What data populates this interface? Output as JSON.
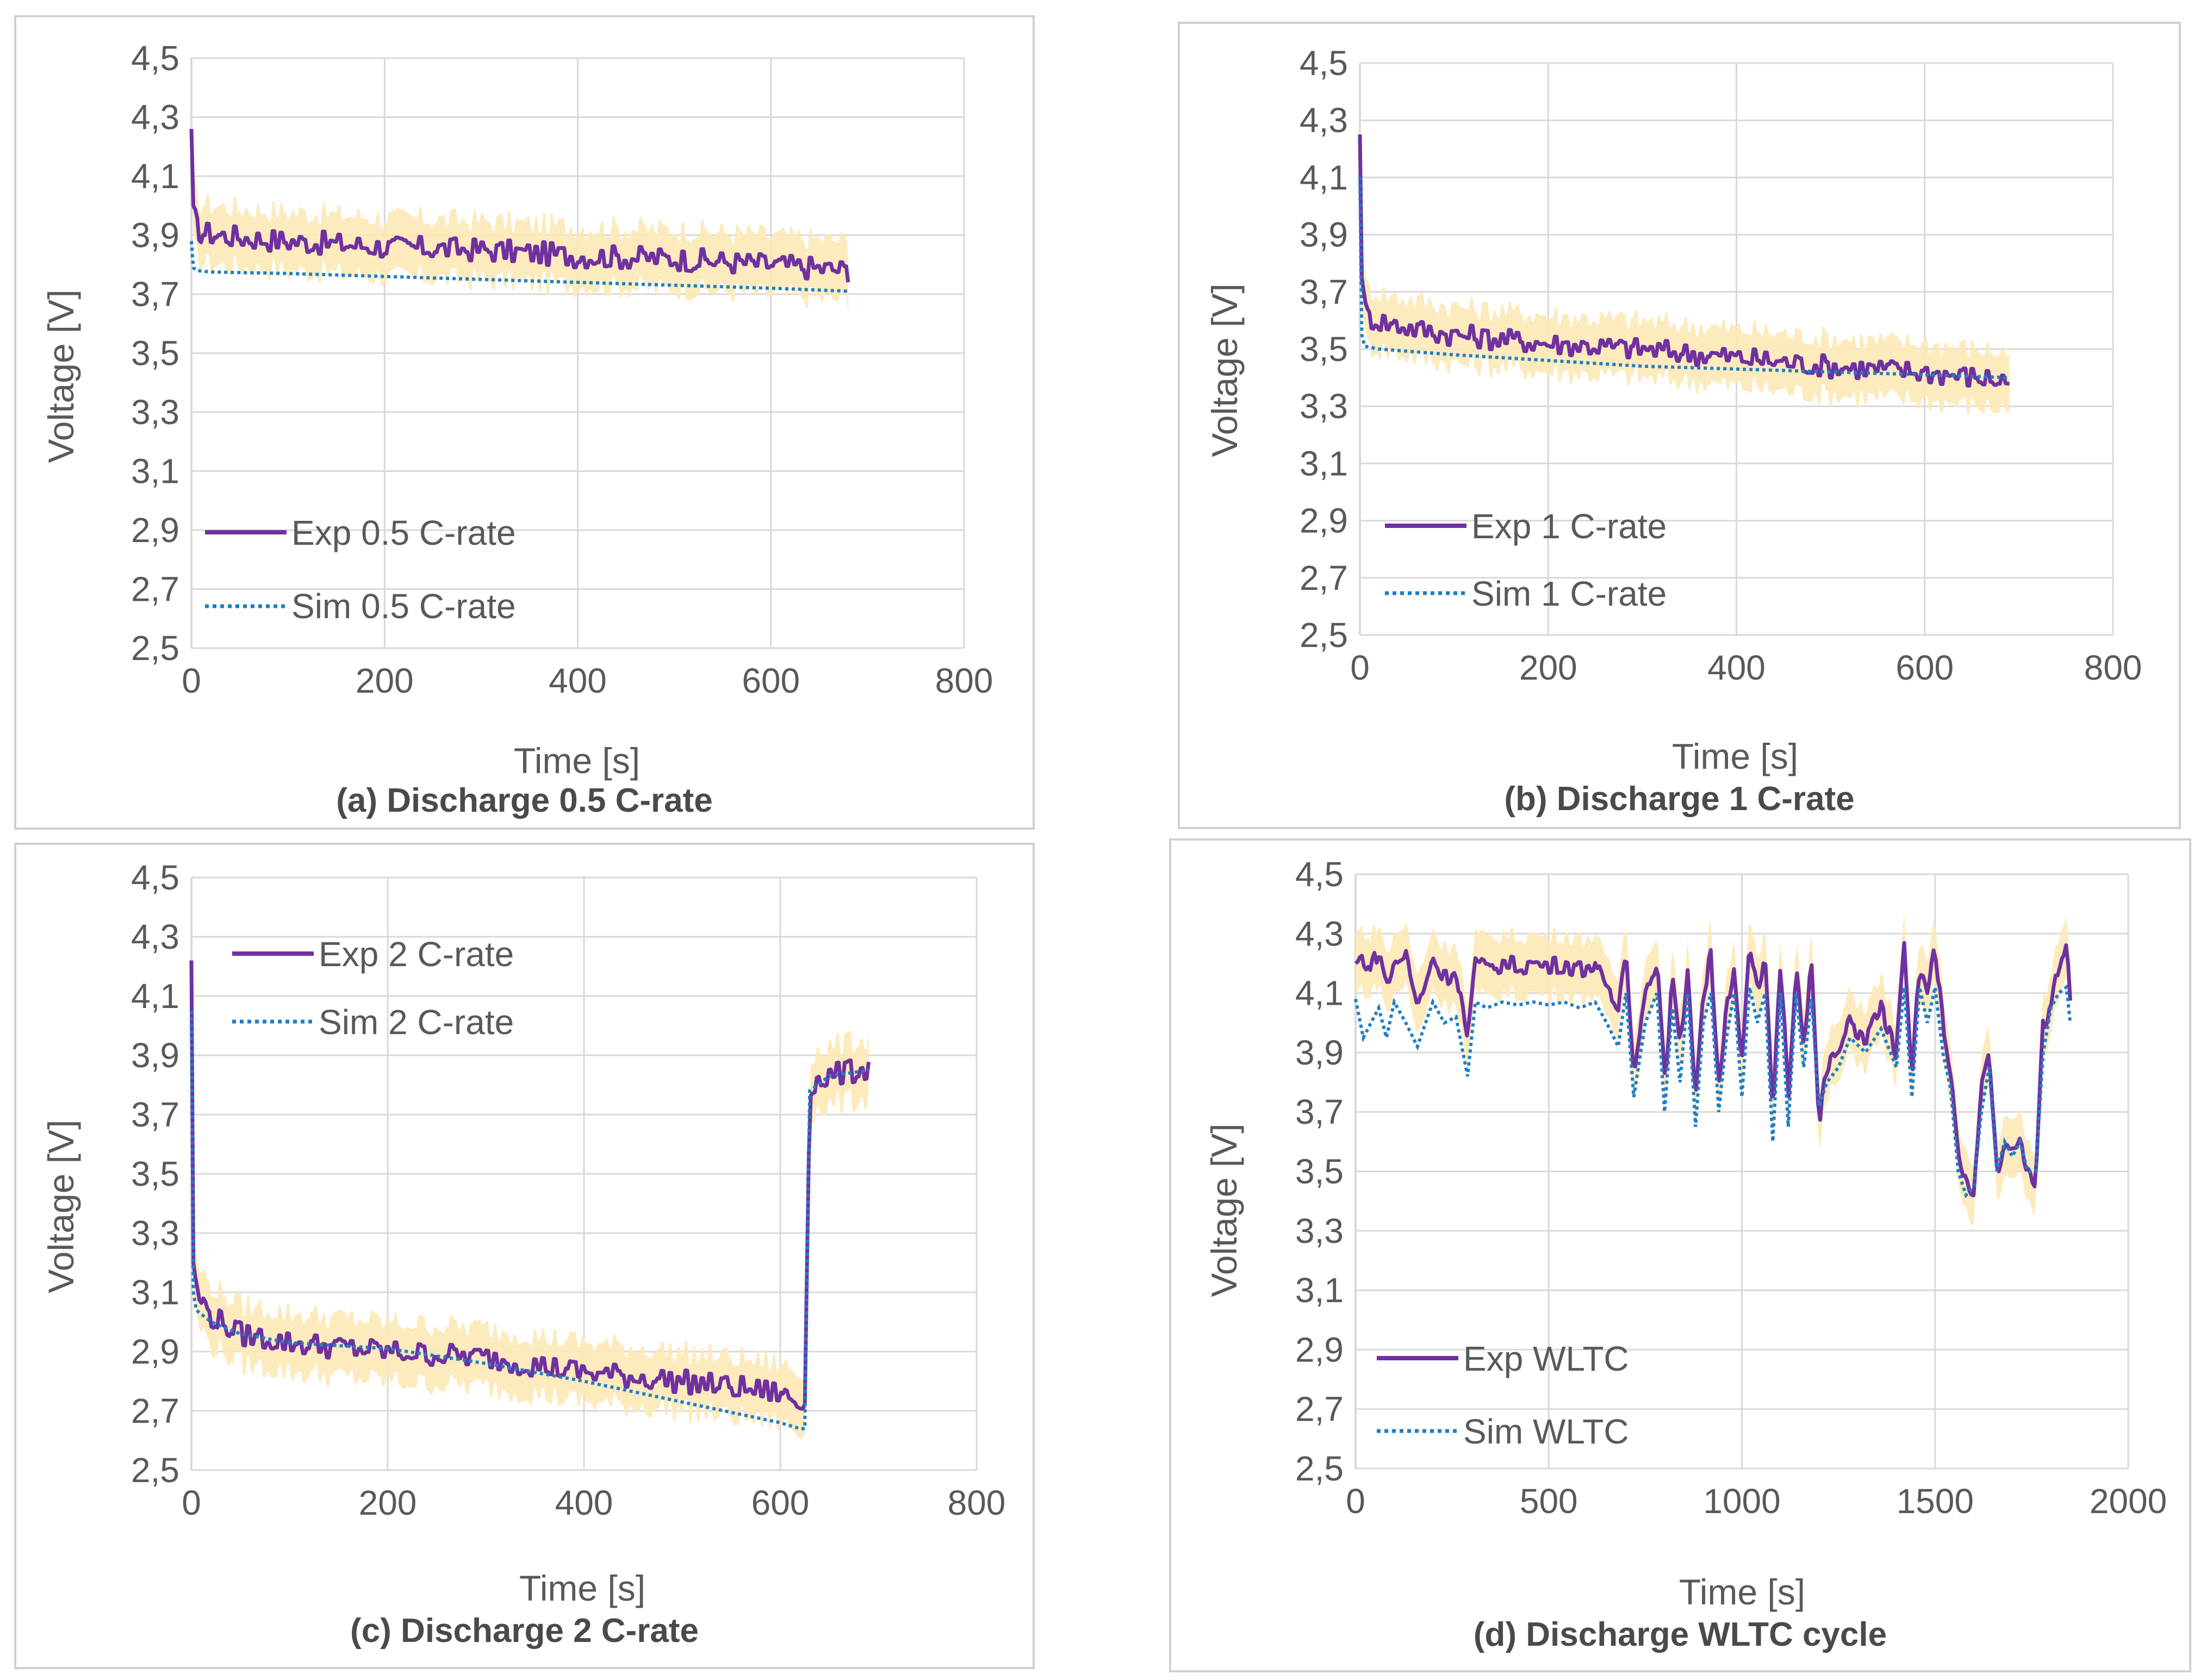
{
  "chart_data": [
    {
      "id": "a",
      "type": "line",
      "caption": "(a) Discharge 0.5 C-rate",
      "xlabel": "Time [s]",
      "ylabel": "Voltage [V]",
      "xlim": [
        0,
        800
      ],
      "ylim": [
        2.5,
        4.5
      ],
      "xticks": [
        "0",
        "200",
        "400",
        "600",
        "800"
      ],
      "yticks": [
        "2,5",
        "2,7",
        "2,9",
        "3,1",
        "3,3",
        "3,5",
        "3,7",
        "3,9",
        "4,1",
        "4,3",
        "4,5"
      ],
      "grid": true,
      "legend_position": "bottom-left",
      "band_color": "#fde9b6",
      "series": [
        {
          "name": "Exp 0.5 C-rate",
          "style": "solid",
          "color": "#7030a0",
          "noise": 0.04,
          "band": 0.1,
          "x": [
            0,
            2,
            5,
            10,
            30,
            60,
            100,
            200,
            300,
            400,
            500,
            600,
            680
          ],
          "y": [
            4.26,
            4.0,
            3.93,
            3.91,
            3.9,
            3.89,
            3.88,
            3.86,
            3.85,
            3.83,
            3.82,
            3.8,
            3.78
          ]
        },
        {
          "name": "Sim 0.5 C-rate",
          "style": "dotted",
          "color": "#1f7fc4",
          "x": [
            0,
            2,
            5,
            20,
            100,
            200,
            300,
            400,
            500,
            600,
            680
          ],
          "y": [
            3.88,
            3.79,
            3.78,
            3.775,
            3.77,
            3.76,
            3.75,
            3.74,
            3.73,
            3.72,
            3.71
          ]
        }
      ]
    },
    {
      "id": "b",
      "type": "line",
      "caption": "(b) Discharge 1 C-rate",
      "xlabel": "Time [s]",
      "ylabel": "Voltage [V]",
      "xlim": [
        0,
        800
      ],
      "ylim": [
        2.5,
        4.5
      ],
      "xticks": [
        "0",
        "200",
        "400",
        "600",
        "800"
      ],
      "yticks": [
        "2,5",
        "2,7",
        "2,9",
        "3,1",
        "3,3",
        "3,5",
        "3,7",
        "3,9",
        "4,1",
        "4,3",
        "4,5"
      ],
      "grid": true,
      "legend_position": "bottom-left",
      "band_color": "#fde9b6",
      "series": [
        {
          "name": "Exp 1 C-rate",
          "style": "solid",
          "color": "#7030a0",
          "noise": 0.04,
          "band": 0.1,
          "x": [
            0,
            2,
            5,
            10,
            30,
            60,
            100,
            200,
            300,
            400,
            500,
            600,
            690
          ],
          "y": [
            4.25,
            3.75,
            3.64,
            3.61,
            3.59,
            3.57,
            3.55,
            3.52,
            3.5,
            3.47,
            3.44,
            3.42,
            3.39
          ]
        },
        {
          "name": "Sim 1 C-rate",
          "style": "dotted",
          "color": "#1f7fc4",
          "x": [
            0,
            2,
            5,
            20,
            100,
            200,
            300,
            400,
            500,
            600,
            690
          ],
          "y": [
            4.1,
            3.55,
            3.51,
            3.5,
            3.48,
            3.46,
            3.44,
            3.43,
            3.42,
            3.41,
            3.4
          ]
        }
      ]
    },
    {
      "id": "c",
      "type": "line",
      "caption": "(c) Discharge  2 C-rate",
      "xlabel": "Time [s]",
      "ylabel": "Voltage [V]",
      "xlim": [
        0,
        800
      ],
      "ylim": [
        2.5,
        4.5
      ],
      "xticks": [
        "0",
        "200",
        "400",
        "600",
        "800"
      ],
      "yticks": [
        "2,5",
        "2,7",
        "2,9",
        "3,1",
        "3,3",
        "3,5",
        "3,7",
        "3,9",
        "4,1",
        "4,3",
        "4,5"
      ],
      "grid": true,
      "legend_position": "top-left",
      "band_color": "#fde9b6",
      "series": [
        {
          "name": "Exp 2 C-rate",
          "style": "solid",
          "color": "#7030a0",
          "noise": 0.04,
          "band": 0.1,
          "x": [
            0,
            2,
            5,
            20,
            50,
            100,
            200,
            300,
            400,
            500,
            600,
            620,
            625,
            630,
            650,
            680,
            690
          ],
          "y": [
            4.22,
            3.2,
            3.1,
            3.02,
            2.96,
            2.93,
            2.9,
            2.88,
            2.83,
            2.8,
            2.76,
            2.72,
            2.72,
            3.8,
            3.83,
            3.85,
            3.86
          ]
        },
        {
          "name": "Sim 2 C-rate",
          "style": "dotted",
          "color": "#1f7fc4",
          "x": [
            0,
            2,
            5,
            20,
            50,
            100,
            200,
            300,
            400,
            500,
            600,
            620,
            625,
            630,
            650,
            690
          ],
          "y": [
            4.05,
            3.1,
            3.04,
            3.0,
            2.96,
            2.93,
            2.91,
            2.86,
            2.8,
            2.73,
            2.66,
            2.64,
            2.64,
            3.78,
            3.83,
            3.85
          ]
        }
      ]
    },
    {
      "id": "d",
      "type": "line",
      "caption": "(d) Discharge WLTC cycle",
      "xlabel": "Time [s]",
      "ylabel": "Voltage [V]",
      "xlim": [
        0,
        2000
      ],
      "ylim": [
        2.5,
        4.5
      ],
      "xticks": [
        "0",
        "500",
        "1000",
        "1500",
        "2000"
      ],
      "yticks": [
        "2,5",
        "2,7",
        "2,9",
        "3,1",
        "3,3",
        "3,5",
        "3,7",
        "3,9",
        "4,1",
        "4,3",
        "4,5"
      ],
      "grid": true,
      "legend_position": "bottom-left",
      "band_color": "#fde9b6",
      "series": [
        {
          "name": "Exp WLTC",
          "style": "solid",
          "color": "#7030a0",
          "noise": 0.03,
          "band": 0.1,
          "x": [
            0,
            20,
            40,
            60,
            80,
            100,
            130,
            160,
            200,
            230,
            260,
            290,
            310,
            340,
            380,
            420,
            460,
            500,
            540,
            580,
            620,
            650,
            680,
            700,
            720,
            750,
            780,
            800,
            820,
            840,
            860,
            880,
            900,
            920,
            940,
            960,
            980,
            1000,
            1020,
            1040,
            1060,
            1080,
            1100,
            1120,
            1140,
            1160,
            1180,
            1200,
            1220,
            1250,
            1280,
            1320,
            1360,
            1400,
            1420,
            1440,
            1460,
            1480,
            1500,
            1520,
            1540,
            1560,
            1580,
            1600,
            1620,
            1640,
            1660,
            1680,
            1700,
            1720,
            1740,
            1760,
            1780,
            1800,
            1820,
            1840,
            1850
          ],
          "y": [
            4.2,
            4.22,
            4.18,
            4.25,
            4.12,
            4.2,
            4.23,
            4.05,
            4.22,
            4.15,
            4.18,
            3.95,
            4.2,
            4.18,
            4.2,
            4.19,
            4.2,
            4.19,
            4.2,
            4.18,
            4.2,
            4.1,
            4.05,
            4.25,
            3.85,
            4.1,
            4.22,
            3.8,
            4.15,
            3.9,
            4.2,
            3.75,
            4.1,
            4.22,
            3.8,
            4.05,
            4.2,
            3.85,
            4.25,
            4.1,
            4.2,
            3.7,
            4.22,
            3.75,
            4.2,
            3.95,
            4.2,
            3.65,
            3.85,
            3.9,
            4.0,
            3.95,
            4.05,
            3.9,
            4.25,
            3.8,
            4.2,
            4.1,
            4.25,
            4.0,
            3.85,
            3.55,
            3.45,
            3.4,
            3.8,
            3.9,
            3.5,
            3.6,
            3.55,
            3.6,
            3.5,
            3.45,
            4.0,
            4.05,
            4.2,
            4.25,
            4.1
          ]
        },
        {
          "name": "Sim WLTC",
          "style": "dotted",
          "color": "#1f7fc4",
          "x": [
            0,
            20,
            40,
            60,
            80,
            100,
            130,
            160,
            200,
            230,
            260,
            290,
            310,
            340,
            380,
            420,
            460,
            500,
            540,
            580,
            620,
            650,
            680,
            700,
            720,
            750,
            780,
            800,
            820,
            840,
            860,
            880,
            900,
            920,
            940,
            960,
            980,
            1000,
            1020,
            1040,
            1060,
            1080,
            1100,
            1120,
            1140,
            1160,
            1180,
            1200,
            1220,
            1250,
            1280,
            1320,
            1360,
            1400,
            1420,
            1440,
            1460,
            1480,
            1500,
            1520,
            1540,
            1560,
            1580,
            1600,
            1620,
            1640,
            1660,
            1680,
            1700,
            1720,
            1740,
            1760,
            1780,
            1800,
            1820,
            1840,
            1850
          ],
          "y": [
            4.08,
            3.95,
            4.0,
            4.05,
            3.95,
            4.07,
            4.0,
            3.92,
            4.07,
            4.0,
            4.02,
            3.82,
            4.07,
            4.05,
            4.07,
            4.06,
            4.07,
            4.06,
            4.07,
            4.05,
            4.07,
            4.0,
            3.92,
            4.1,
            3.75,
            4.0,
            4.1,
            3.7,
            4.05,
            3.8,
            4.1,
            3.65,
            4.0,
            4.1,
            3.7,
            3.95,
            4.1,
            3.75,
            4.12,
            4.0,
            4.1,
            3.6,
            4.1,
            3.65,
            4.1,
            3.85,
            4.08,
            3.72,
            3.8,
            3.85,
            3.95,
            3.9,
            3.98,
            3.85,
            4.12,
            3.75,
            4.12,
            4.0,
            4.12,
            3.9,
            3.78,
            3.5,
            3.42,
            3.45,
            3.7,
            3.85,
            3.5,
            3.6,
            3.55,
            3.6,
            3.5,
            3.5,
            3.9,
            4.05,
            4.1,
            4.12,
            4.0
          ]
        }
      ]
    }
  ]
}
